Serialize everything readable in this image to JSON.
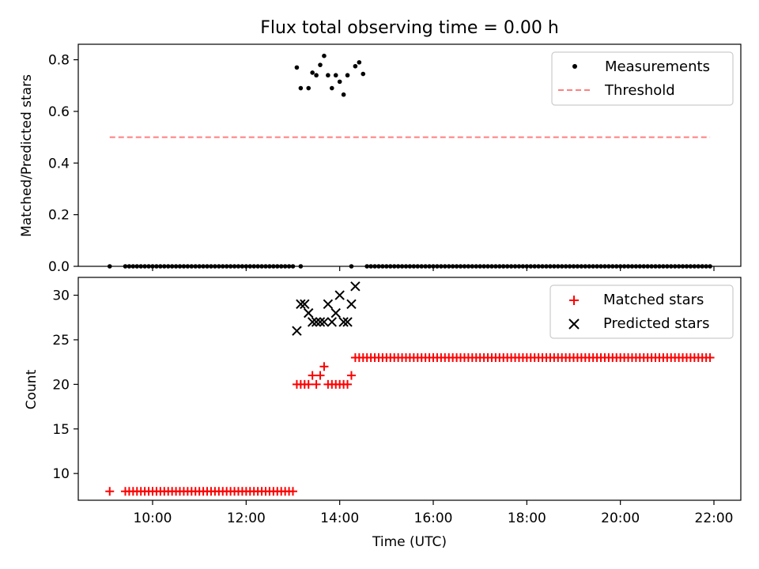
{
  "chart_data": [
    {
      "type": "scatter",
      "title": "Flux total observing time = 0.00 h",
      "xlabel": "",
      "ylabel": "Matched/Predicted stars",
      "ylim": [
        0,
        0.86
      ],
      "xlim": [
        "09:00",
        "22:20"
      ],
      "yticks": [
        "0.0",
        "0.2",
        "0.4",
        "0.6",
        "0.8"
      ],
      "xticks": [
        "10:00",
        "12:00",
        "14:00",
        "16:00",
        "18:00",
        "20:00",
        "22:00"
      ],
      "show_xtick_labels": false,
      "legend": "top-right",
      "legend_labels": {
        "measurements": "Measurements",
        "threshold": "Threshold"
      },
      "series": [
        {
          "name": "Measurements",
          "marker": "dot",
          "color": "#000000",
          "groups": [
            {
              "start": "09:05",
              "end": "09:05",
              "step_min": 5,
              "y": 0
            },
            {
              "start": "09:25",
              "end": "13:00",
              "step_min": 5,
              "y": 0
            },
            {
              "start": "13:10",
              "end": "13:10",
              "step_min": 5,
              "y": 0
            },
            {
              "start": "14:15",
              "end": "14:15",
              "step_min": 5,
              "y": 0
            },
            {
              "start": "14:35",
              "end": "21:55",
              "step_min": 5,
              "y": 0
            }
          ],
          "points": [
            [
              "13:05",
              0.77
            ],
            [
              "13:10",
              0.69
            ],
            [
              "13:20",
              0.69
            ],
            [
              "13:25",
              0.75
            ],
            [
              "13:30",
              0.74
            ],
            [
              "13:35",
              0.78
            ],
            [
              "13:40",
              0.815
            ],
            [
              "13:45",
              0.74
            ],
            [
              "13:50",
              0.69
            ],
            [
              "13:55",
              0.74
            ],
            [
              "14:00",
              0.715
            ],
            [
              "14:05",
              0.665
            ],
            [
              "14:10",
              0.74
            ],
            [
              "14:20",
              0.775
            ],
            [
              "14:25",
              0.79
            ],
            [
              "14:30",
              0.745
            ]
          ]
        },
        {
          "name": "Threshold",
          "style": "dashed",
          "color": "#ff7f7f",
          "x": [
            "09:05",
            "21:55"
          ],
          "y": [
            0.5,
            0.5
          ]
        }
      ]
    },
    {
      "type": "scatter",
      "title": "",
      "xlabel": "Time (UTC)",
      "ylabel": "Count",
      "ylim": [
        7,
        32
      ],
      "xlim": [
        "09:00",
        "22:20"
      ],
      "yticks": [
        "10",
        "15",
        "20",
        "25",
        "30"
      ],
      "xticks": [
        "10:00",
        "12:00",
        "14:00",
        "16:00",
        "18:00",
        "20:00",
        "22:00"
      ],
      "legend": "top-right",
      "legend_labels": {
        "matched": "Matched stars",
        "predicted": "Predicted stars"
      },
      "series": [
        {
          "name": "Matched stars",
          "marker": "plus",
          "color": "#ff0000",
          "groups": [
            {
              "start": "09:05",
              "end": "09:05",
              "step_min": 5,
              "y": 8
            },
            {
              "start": "09:25",
              "end": "13:00",
              "step_min": 5,
              "y": 8
            },
            {
              "start": "14:35",
              "end": "21:55",
              "step_min": 5,
              "y": 23
            }
          ],
          "points": [
            [
              "13:05",
              20
            ],
            [
              "13:10",
              20
            ],
            [
              "13:15",
              20
            ],
            [
              "13:20",
              20
            ],
            [
              "13:25",
              21
            ],
            [
              "13:30",
              20
            ],
            [
              "13:35",
              21
            ],
            [
              "13:40",
              22
            ],
            [
              "13:45",
              20
            ],
            [
              "13:50",
              20
            ],
            [
              "13:55",
              20
            ],
            [
              "14:00",
              20
            ],
            [
              "14:05",
              20
            ],
            [
              "14:10",
              20
            ],
            [
              "14:15",
              21
            ],
            [
              "14:20",
              23
            ],
            [
              "14:25",
              23
            ],
            [
              "14:30",
              23
            ]
          ]
        },
        {
          "name": "Predicted stars",
          "marker": "x",
          "color": "#000000",
          "points": [
            [
              "13:05",
              26
            ],
            [
              "13:10",
              29
            ],
            [
              "13:15",
              29
            ],
            [
              "13:20",
              28
            ],
            [
              "13:25",
              27
            ],
            [
              "13:30",
              27
            ],
            [
              "13:35",
              27
            ],
            [
              "13:40",
              27
            ],
            [
              "13:45",
              29
            ],
            [
              "13:50",
              27
            ],
            [
              "13:55",
              28
            ],
            [
              "14:00",
              30
            ],
            [
              "14:05",
              27
            ],
            [
              "14:10",
              27
            ],
            [
              "14:15",
              29
            ],
            [
              "14:20",
              31
            ]
          ]
        }
      ]
    }
  ]
}
